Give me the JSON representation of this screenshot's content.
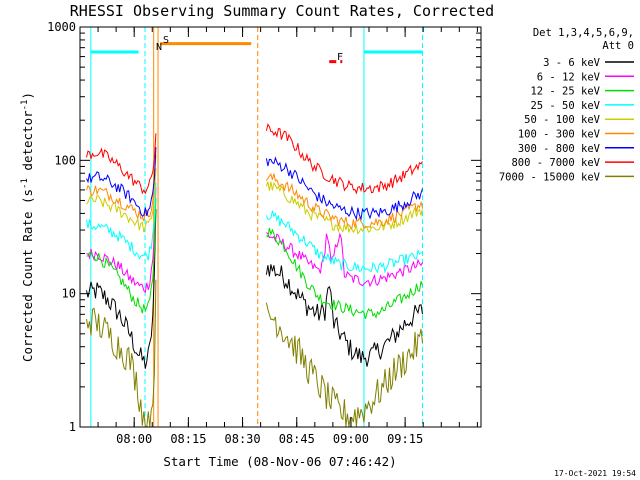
{
  "chart_data": {
    "type": "line",
    "title": "RHESSI Observing Summary Count Rates, Corrected",
    "xlabel": "Start Time (08-Nov-06 07:46:42)",
    "ylabel": "Corrected Count Rate (s",
    "ylabel_sup": "-1",
    "ylabel_mid": " detector",
    "ylabel_sup2": "-1",
    "ylabel_end": ")",
    "yscale": "log",
    "ylim": [
      1,
      1000
    ],
    "xlim_minutes": [
      7.75,
      9.6
    ],
    "yticks": [
      {
        "v": 1,
        "label": "1"
      },
      {
        "v": 10,
        "label": "10"
      },
      {
        "v": 100,
        "label": "100"
      },
      {
        "v": 1000,
        "label": "1000"
      }
    ],
    "xticks": [
      {
        "v": 8.0,
        "label": "08:00"
      },
      {
        "v": 8.25,
        "label": "08:15"
      },
      {
        "v": 8.5,
        "label": "08:30"
      },
      {
        "v": 8.75,
        "label": "08:45"
      },
      {
        "v": 9.0,
        "label": "09:00"
      },
      {
        "v": 9.25,
        "label": "09:15"
      }
    ],
    "legend": {
      "position": "right",
      "header1": "Det 1,3,4,5,6,9,",
      "header2": "Att 0",
      "entries": [
        {
          "label": "3 - 6 keV",
          "color": "#000000"
        },
        {
          "label": "6 - 12 keV",
          "color": "#ff00ff"
        },
        {
          "label": "12 - 25 keV",
          "color": "#00dd00"
        },
        {
          "label": "25 - 50 keV",
          "color": "#00ffff"
        },
        {
          "label": "50 - 100 keV",
          "color": "#cccc00"
        },
        {
          "label": "100 - 300 keV",
          "color": "#ff8800"
        },
        {
          "label": "300 - 800 keV",
          "color": "#0000ff"
        },
        {
          "label": "800 - 7000 keV",
          "color": "#ff0000"
        },
        {
          "label": "7000 - 15000 keV",
          "color": "#808000"
        }
      ]
    },
    "series": [
      {
        "name": "3 - 6 keV",
        "color": "#000000",
        "seg1": [
          [
            7.78,
            10
          ],
          [
            7.83,
            10.5
          ],
          [
            7.88,
            9
          ],
          [
            7.93,
            7
          ],
          [
            7.98,
            5
          ],
          [
            8.02,
            3.5
          ],
          [
            8.05,
            3
          ],
          [
            8.07,
            3.5
          ],
          [
            8.09,
            8
          ],
          [
            8.1,
            40
          ]
        ],
        "seg2": [
          [
            8.61,
            16
          ],
          [
            8.65,
            15
          ],
          [
            8.7,
            13
          ],
          [
            8.75,
            10
          ],
          [
            8.8,
            8
          ],
          [
            8.85,
            7
          ],
          [
            8.88,
            7.5
          ],
          [
            8.9,
            12
          ],
          [
            8.92,
            6
          ],
          [
            8.97,
            4.5
          ],
          [
            9.0,
            3.8
          ],
          [
            9.05,
            3.3
          ],
          [
            9.1,
            3.5
          ],
          [
            9.15,
            4
          ],
          [
            9.2,
            4.8
          ],
          [
            9.25,
            6
          ],
          [
            9.3,
            7
          ],
          [
            9.33,
            7.5
          ]
        ]
      },
      {
        "name": "6 - 12 keV",
        "color": "#ff00ff",
        "seg1": [
          [
            7.78,
            20
          ],
          [
            7.83,
            20
          ],
          [
            7.88,
            18
          ],
          [
            7.93,
            16
          ],
          [
            7.98,
            13
          ],
          [
            8.02,
            11.5
          ],
          [
            8.05,
            11
          ],
          [
            8.07,
            12
          ],
          [
            8.09,
            20
          ],
          [
            8.1,
            60
          ]
        ],
        "seg2": [
          [
            8.61,
            28
          ],
          [
            8.65,
            26
          ],
          [
            8.7,
            23
          ],
          [
            8.75,
            20
          ],
          [
            8.8,
            17
          ],
          [
            8.85,
            15
          ],
          [
            8.87,
            16
          ],
          [
            8.89,
            30
          ],
          [
            8.91,
            16
          ],
          [
            8.95,
            30
          ],
          [
            8.97,
            14
          ],
          [
            9.0,
            13
          ],
          [
            9.05,
            12.5
          ],
          [
            9.1,
            12.5
          ],
          [
            9.15,
            13
          ],
          [
            9.2,
            14
          ],
          [
            9.25,
            15
          ],
          [
            9.3,
            16
          ],
          [
            9.33,
            16.5
          ]
        ]
      },
      {
        "name": "12 - 25 keV",
        "color": "#00dd00",
        "seg1": [
          [
            7.78,
            19
          ],
          [
            7.81,
            20
          ],
          [
            7.85,
            18
          ],
          [
            7.9,
            15
          ],
          [
            7.95,
            12
          ],
          [
            8.0,
            9
          ],
          [
            8.03,
            8
          ],
          [
            8.05,
            7.5
          ],
          [
            8.07,
            8
          ],
          [
            8.09,
            15
          ],
          [
            8.1,
            50
          ]
        ],
        "seg2": [
          [
            8.61,
            30
          ],
          [
            8.65,
            27
          ],
          [
            8.7,
            22
          ],
          [
            8.75,
            16
          ],
          [
            8.8,
            12
          ],
          [
            8.85,
            9.5
          ],
          [
            8.9,
            8.5
          ],
          [
            8.95,
            8
          ],
          [
            9.0,
            7.5
          ],
          [
            9.05,
            7.2
          ],
          [
            9.1,
            7
          ],
          [
            9.15,
            7.5
          ],
          [
            9.2,
            8.5
          ],
          [
            9.25,
            9.5
          ],
          [
            9.3,
            11
          ],
          [
            9.33,
            12
          ]
        ]
      },
      {
        "name": "25 - 50 keV",
        "color": "#00ffff",
        "seg1": [
          [
            7.78,
            33
          ],
          [
            7.83,
            32
          ],
          [
            7.88,
            30
          ],
          [
            7.93,
            27
          ],
          [
            7.98,
            23
          ],
          [
            8.02,
            20
          ],
          [
            8.05,
            19
          ],
          [
            8.07,
            20
          ],
          [
            8.09,
            30
          ],
          [
            8.1,
            70
          ]
        ],
        "seg2": [
          [
            8.61,
            40
          ],
          [
            8.65,
            37
          ],
          [
            8.7,
            33
          ],
          [
            8.75,
            28
          ],
          [
            8.8,
            24
          ],
          [
            8.85,
            20
          ],
          [
            8.9,
            18
          ],
          [
            8.95,
            16.5
          ],
          [
            9.0,
            16
          ],
          [
            9.05,
            15.5
          ],
          [
            9.1,
            15.5
          ],
          [
            9.15,
            16
          ],
          [
            9.2,
            17
          ],
          [
            9.25,
            18
          ],
          [
            9.3,
            19
          ],
          [
            9.33,
            19.5
          ]
        ]
      },
      {
        "name": "50 - 100 keV",
        "color": "#cccc00",
        "seg1": [
          [
            7.78,
            50
          ],
          [
            7.83,
            50
          ],
          [
            7.88,
            46
          ],
          [
            7.93,
            42
          ],
          [
            7.98,
            37
          ],
          [
            8.02,
            33
          ],
          [
            8.05,
            31
          ],
          [
            8.07,
            33
          ],
          [
            8.09,
            45
          ],
          [
            8.1,
            90
          ]
        ],
        "seg2": [
          [
            8.61,
            65
          ],
          [
            8.65,
            62
          ],
          [
            8.7,
            55
          ],
          [
            8.75,
            48
          ],
          [
            8.8,
            41
          ],
          [
            8.85,
            37
          ],
          [
            8.9,
            34
          ],
          [
            8.95,
            32
          ],
          [
            9.0,
            31
          ],
          [
            9.05,
            31
          ],
          [
            9.1,
            31
          ],
          [
            9.15,
            32
          ],
          [
            9.2,
            34
          ],
          [
            9.25,
            37
          ],
          [
            9.3,
            41
          ],
          [
            9.33,
            43
          ]
        ]
      },
      {
        "name": "100 - 300 keV",
        "color": "#ff8800",
        "seg1": [
          [
            7.78,
            60
          ],
          [
            7.83,
            60
          ],
          [
            7.88,
            56
          ],
          [
            7.93,
            50
          ],
          [
            7.98,
            44
          ],
          [
            8.02,
            40
          ],
          [
            8.05,
            38
          ],
          [
            8.07,
            40
          ],
          [
            8.09,
            55
          ],
          [
            8.1,
            110
          ]
        ],
        "seg2": [
          [
            8.61,
            75
          ],
          [
            8.65,
            72
          ],
          [
            8.7,
            64
          ],
          [
            8.75,
            56
          ],
          [
            8.8,
            48
          ],
          [
            8.85,
            42
          ],
          [
            8.9,
            38
          ],
          [
            8.95,
            35
          ],
          [
            9.0,
            34
          ],
          [
            9.05,
            34
          ],
          [
            9.1,
            34
          ],
          [
            9.15,
            35
          ],
          [
            9.2,
            38
          ],
          [
            9.25,
            41
          ],
          [
            9.3,
            45
          ],
          [
            9.33,
            48
          ]
        ]
      },
      {
        "name": "300 - 800 keV",
        "color": "#0000ff",
        "seg1": [
          [
            7.78,
            72
          ],
          [
            7.83,
            75
          ],
          [
            7.88,
            70
          ],
          [
            7.93,
            62
          ],
          [
            7.98,
            53
          ],
          [
            8.02,
            45
          ],
          [
            8.05,
            40
          ],
          [
            8.07,
            42
          ],
          [
            8.09,
            60
          ],
          [
            8.1,
            120
          ]
        ],
        "seg2": [
          [
            8.61,
            100
          ],
          [
            8.65,
            96
          ],
          [
            8.7,
            88
          ],
          [
            8.75,
            75
          ],
          [
            8.8,
            62
          ],
          [
            8.85,
            53
          ],
          [
            8.9,
            47
          ],
          [
            8.95,
            43
          ],
          [
            9.0,
            41
          ],
          [
            9.05,
            40
          ],
          [
            9.1,
            40
          ],
          [
            9.15,
            41
          ],
          [
            9.2,
            44
          ],
          [
            9.25,
            48
          ],
          [
            9.3,
            54
          ],
          [
            9.33,
            57
          ]
        ]
      },
      {
        "name": "800 - 7000 keV",
        "color": "#ff0000",
        "seg1": [
          [
            7.78,
            110
          ],
          [
            7.83,
            115
          ],
          [
            7.88,
            105
          ],
          [
            7.93,
            90
          ],
          [
            7.98,
            75
          ],
          [
            8.02,
            65
          ],
          [
            8.05,
            60
          ],
          [
            8.07,
            63
          ],
          [
            8.09,
            90
          ],
          [
            8.1,
            160
          ]
        ],
        "seg2": [
          [
            8.61,
            170
          ],
          [
            8.65,
            165
          ],
          [
            8.7,
            150
          ],
          [
            8.75,
            125
          ],
          [
            8.8,
            100
          ],
          [
            8.85,
            85
          ],
          [
            8.9,
            75
          ],
          [
            8.95,
            68
          ],
          [
            9.0,
            63
          ],
          [
            9.05,
            62
          ],
          [
            9.1,
            62
          ],
          [
            9.15,
            64
          ],
          [
            9.2,
            70
          ],
          [
            9.25,
            78
          ],
          [
            9.3,
            88
          ],
          [
            9.33,
            93
          ]
        ]
      },
      {
        "name": "7000 - 15000 keV",
        "color": "#808000",
        "seg1": [
          [
            7.78,
            6.5
          ],
          [
            7.83,
            6
          ],
          [
            7.88,
            5
          ],
          [
            7.93,
            4
          ],
          [
            7.98,
            3.2
          ],
          [
            8.01,
            2.2
          ],
          [
            8.03,
            1.5
          ],
          [
            8.05,
            1.1
          ],
          [
            8.07,
            1
          ],
          [
            8.09,
            2
          ],
          [
            8.1,
            10
          ]
        ],
        "seg2": [
          [
            8.61,
            7
          ],
          [
            8.65,
            6.5
          ],
          [
            8.7,
            5
          ],
          [
            8.75,
            3.8
          ],
          [
            8.8,
            2.8
          ],
          [
            8.85,
            2.1
          ],
          [
            8.9,
            1.6
          ],
          [
            8.95,
            1.3
          ],
          [
            9.0,
            1.2
          ],
          [
            9.05,
            1.3
          ],
          [
            9.1,
            1.6
          ],
          [
            9.15,
            2
          ],
          [
            9.2,
            2.6
          ],
          [
            9.25,
            3.2
          ],
          [
            9.3,
            4
          ],
          [
            9.33,
            4.6
          ]
        ]
      }
    ],
    "annotations": [
      {
        "label": "S",
        "color": "#ff8800"
      },
      {
        "label": "N",
        "color": "#00ffff"
      },
      {
        "label": "F",
        "color": "#ff0000"
      }
    ],
    "vlines": [
      {
        "x": 7.8,
        "color": "#00ffff",
        "dash": false
      },
      {
        "x": 8.05,
        "color": "#00ffff",
        "dash": true
      },
      {
        "x": 8.09,
        "color": "#ff8800",
        "dash": false
      },
      {
        "x": 8.11,
        "color": "#ff8800",
        "dash": false
      },
      {
        "x": 8.57,
        "color": "#ff8800",
        "dash": true
      },
      {
        "x": 9.06,
        "color": "#00ffff",
        "dash": false
      },
      {
        "x": 9.33,
        "color": "#00ffff",
        "dash": true
      }
    ],
    "flag_bars": [
      {
        "x0": 7.8,
        "x1": 8.02,
        "y": 650,
        "color": "#00ffff"
      },
      {
        "x0": 8.12,
        "x1": 8.54,
        "y": 750,
        "color": "#ff8800"
      },
      {
        "x0": 9.06,
        "x1": 9.33,
        "y": 650,
        "color": "#00ffff"
      },
      {
        "x0": 8.9,
        "x1": 8.96,
        "y": 550,
        "color": "#ff0000",
        "dash": true
      }
    ],
    "timestamp": "17-Oct-2021 19:54"
  }
}
